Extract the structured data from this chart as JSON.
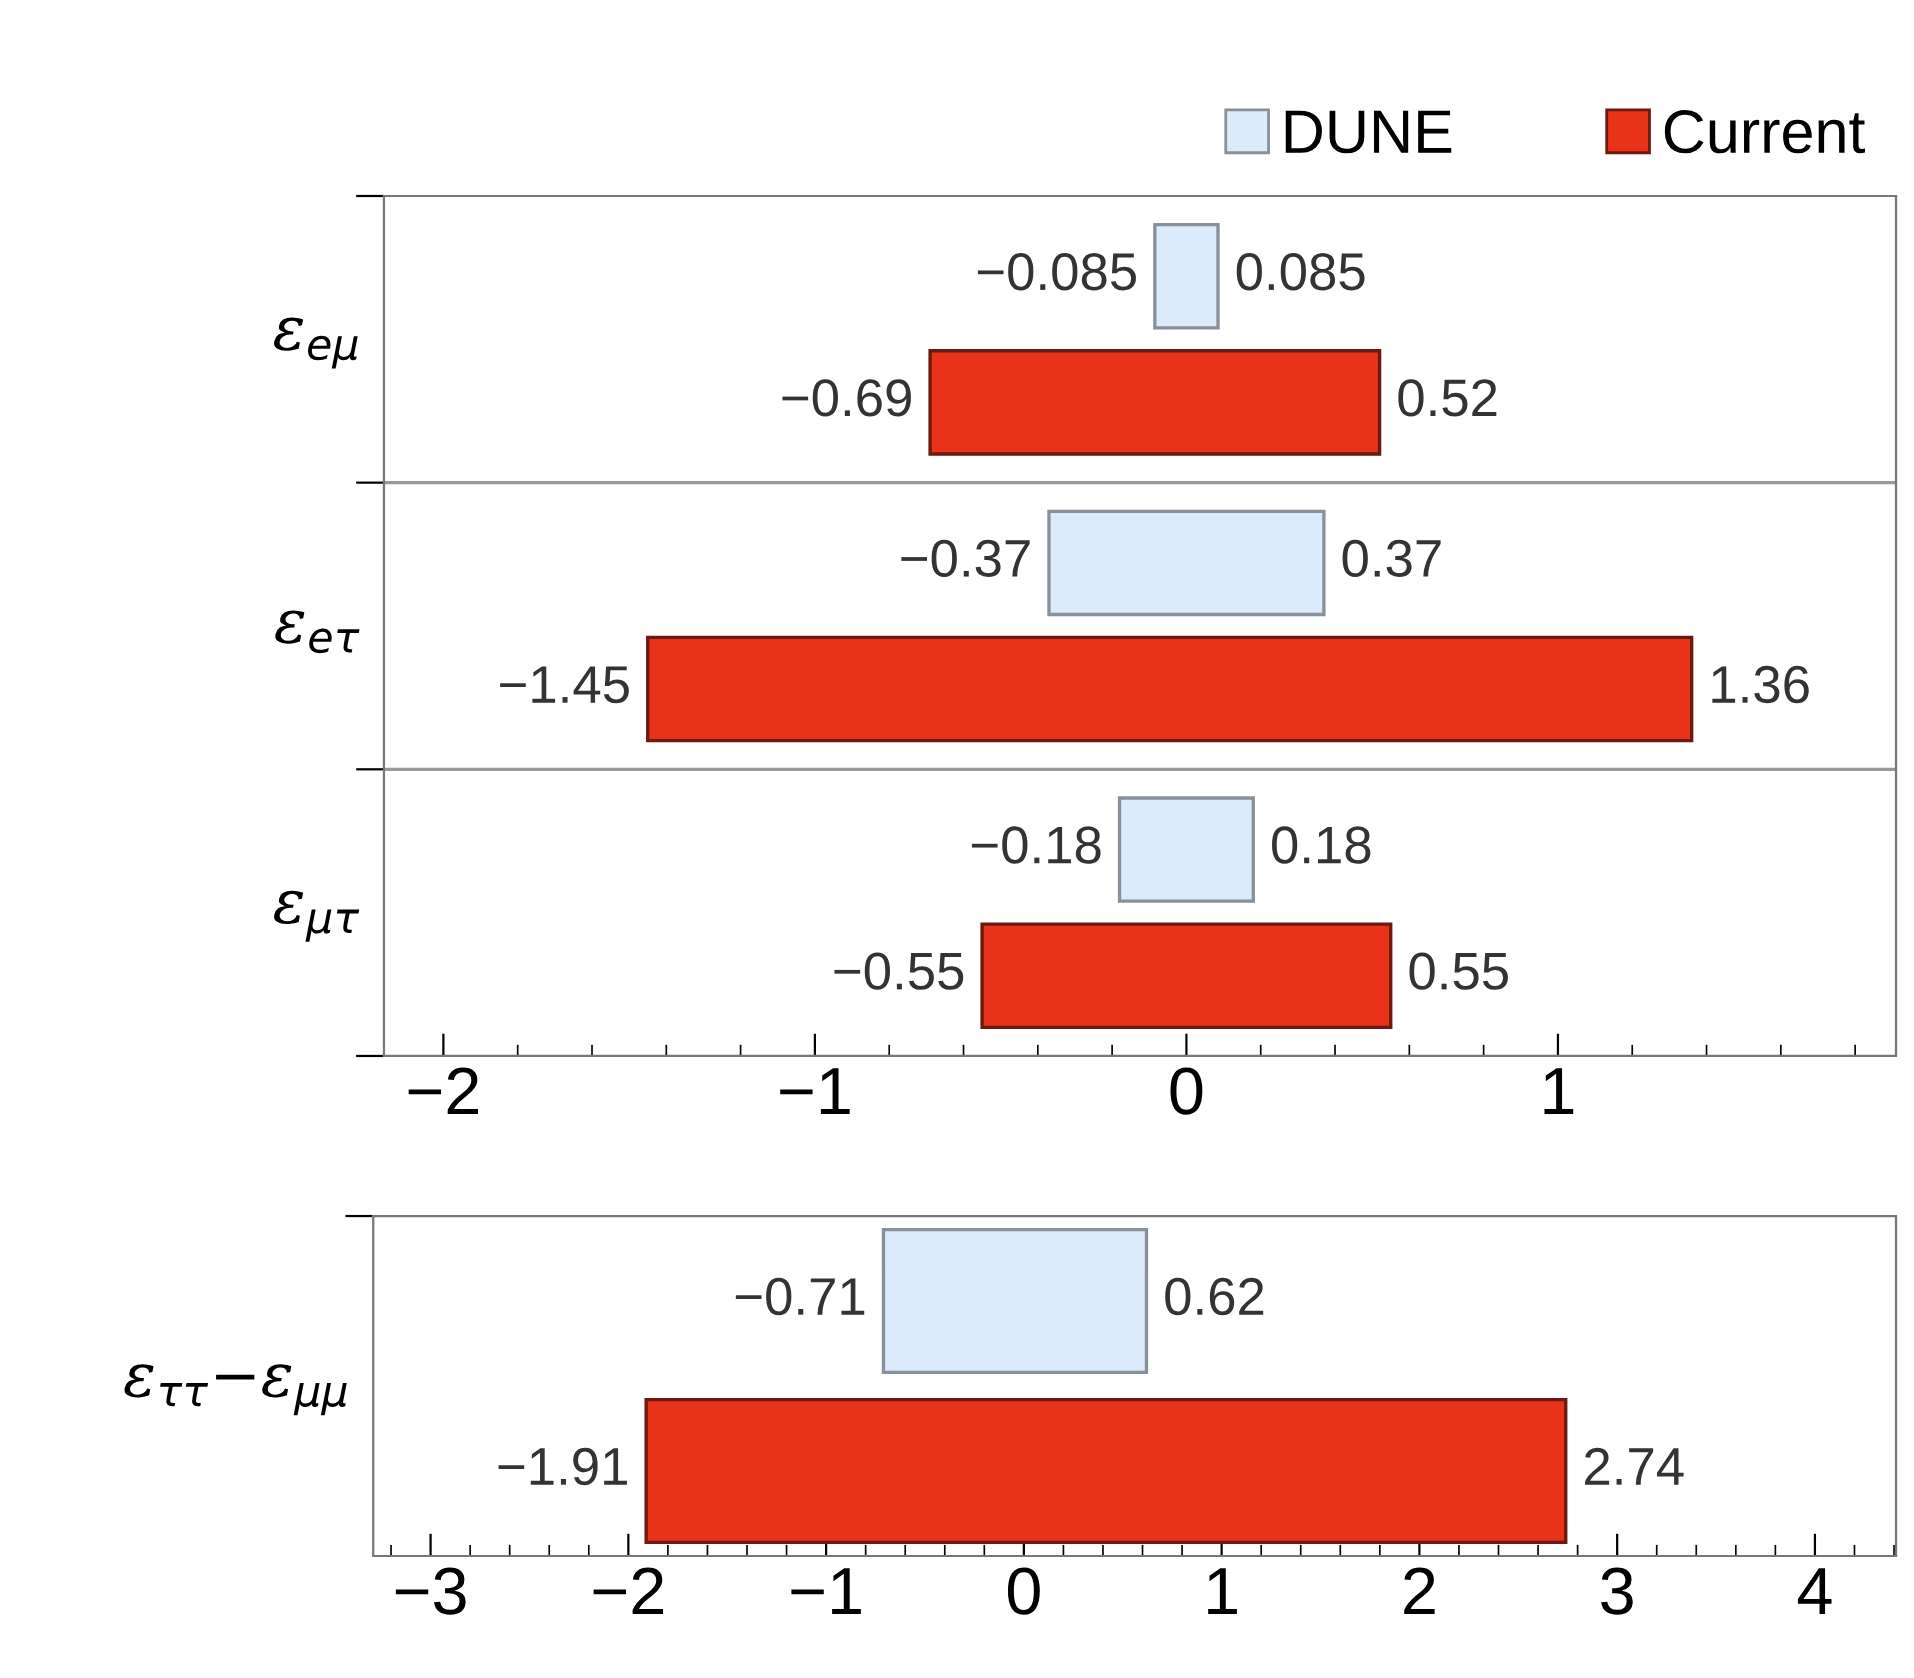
{
  "chart_data": [
    {
      "type": "bar",
      "orientation": "horizontal",
      "categories": [
        "ε$_{eμ}$",
        "ε$_{eτ}$",
        "ε$_{μτ}$"
      ],
      "series": [
        {
          "name": "DUNE",
          "color": "#dcebfb",
          "base": [
            -0.085,
            -0.37,
            -0.18
          ],
          "values": [
            0.17,
            0.74,
            0.36
          ]
        },
        {
          "name": "Current",
          "color": "#e8321a",
          "base": [
            -0.69,
            -1.45,
            -0.55
          ],
          "values": [
            1.21,
            2.81,
            1.1
          ]
        }
      ],
      "xlim": [
        -2.16,
        1.91
      ],
      "xticks": [
        {
          "value": -2,
          "label": "−2"
        },
        {
          "value": -1,
          "label": "−1"
        },
        0,
        1
      ],
      "grid": "y",
      "legend": "top right",
      "annotations": [
        "−0.085",
        "0.085",
        "−0.69",
        "0.52",
        "−0.37",
        "0.37",
        "−1.45",
        "1.36",
        "−0.18",
        "0.18",
        "−0.55",
        "0.55"
      ]
    },
    {
      "type": "bar",
      "orientation": "horizontal",
      "categories": [
        "ε$_{ττ}$−ε$_{μμ}$"
      ],
      "series": [
        {
          "color": "#dcebfb",
          "base": [
            -0.71
          ],
          "values": [
            1.33
          ]
        },
        {
          "color": "#e8321a",
          "base": [
            -1.91
          ],
          "values": [
            4.65
          ]
        }
      ],
      "xlim": [
        -3.29,
        4.41
      ],
      "xticks": [
        {
          "value": -3,
          "label": "−3"
        },
        {
          "value": -2,
          "label": "−2"
        },
        {
          "value": -1,
          "label": "−1"
        },
        0,
        1,
        2,
        3,
        4
      ],
      "annotations": [
        "−0.71",
        "0.62",
        "−1.91",
        "2.74"
      ]
    }
  ]
}
